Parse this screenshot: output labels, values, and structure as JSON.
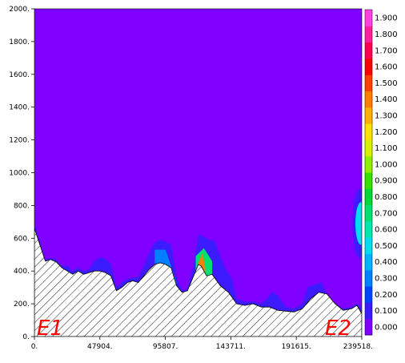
{
  "chart_data": {
    "type": "heatmap",
    "title": "",
    "xlabel": "",
    "ylabel": "",
    "xlim": [
      0,
      239518
    ],
    "ylim": [
      0,
      2000
    ],
    "x_ticks": [
      0,
      47904,
      95807,
      143711,
      191615,
      239518
    ],
    "x_tick_labels": [
      "0.",
      "47904.",
      "95807.",
      "143711.",
      "191615.",
      "239518."
    ],
    "y_ticks": [
      0,
      200,
      400,
      600,
      800,
      1000,
      1200,
      1400,
      1600,
      1800,
      2000
    ],
    "y_tick_labels": [
      "0.",
      "200.",
      "400.",
      "600.",
      "800.",
      "1000.",
      "1200.",
      "1400.",
      "1600.",
      "1800.",
      "2000."
    ],
    "colorbar": {
      "levels": [
        0.0,
        0.1,
        0.2,
        0.3,
        0.4,
        0.5,
        0.6,
        0.7,
        0.8,
        0.9,
        1.0,
        1.1,
        1.2,
        1.3,
        1.4,
        1.5,
        1.6,
        1.7,
        1.8,
        1.9
      ],
      "labels": [
        "0.000",
        "0.100",
        "0.200",
        "0.300",
        "0.400",
        "0.500",
        "0.600",
        "0.700",
        "0.800",
        "0.900",
        "1.000",
        "1.100",
        "1.200",
        "1.300",
        "1.400",
        "1.500",
        "1.600",
        "1.700",
        "1.800",
        "1.900"
      ],
      "colors": [
        "#7f00ff",
        "#3c1cff",
        "#0044ff",
        "#0080ff",
        "#00b4ff",
        "#00dcf0",
        "#00e8b0",
        "#00e070",
        "#00d838",
        "#38e000",
        "#90ee00",
        "#d8f000",
        "#ffe000",
        "#ffb000",
        "#ff8000",
        "#ff4000",
        "#ff0000",
        "#ff0050",
        "#ff20a0",
        "#ff40e0"
      ]
    },
    "background_value": 0.0,
    "background_color": "#7f00ff",
    "terrain_profile": [
      [
        0,
        660
      ],
      [
        4000,
        560
      ],
      [
        8000,
        460
      ],
      [
        12000,
        470
      ],
      [
        16000,
        455
      ],
      [
        20000,
        420
      ],
      [
        24000,
        400
      ],
      [
        28000,
        380
      ],
      [
        32000,
        400
      ],
      [
        36000,
        380
      ],
      [
        40000,
        390
      ],
      [
        44000,
        400
      ],
      [
        48000,
        400
      ],
      [
        52000,
        390
      ],
      [
        56000,
        370
      ],
      [
        60000,
        280
      ],
      [
        64000,
        300
      ],
      [
        68000,
        330
      ],
      [
        72000,
        340
      ],
      [
        76000,
        330
      ],
      [
        80000,
        370
      ],
      [
        84000,
        410
      ],
      [
        88000,
        440
      ],
      [
        92000,
        450
      ],
      [
        96000,
        440
      ],
      [
        100000,
        420
      ],
      [
        104000,
        310
      ],
      [
        108000,
        270
      ],
      [
        112000,
        280
      ],
      [
        116000,
        360
      ],
      [
        120000,
        440
      ],
      [
        122000,
        430
      ],
      [
        126000,
        370
      ],
      [
        130000,
        380
      ],
      [
        136000,
        310
      ],
      [
        142000,
        270
      ],
      [
        148000,
        200
      ],
      [
        154000,
        190
      ],
      [
        160000,
        200
      ],
      [
        166000,
        180
      ],
      [
        172000,
        180
      ],
      [
        178000,
        160
      ],
      [
        184000,
        155
      ],
      [
        190000,
        150
      ],
      [
        196000,
        170
      ],
      [
        202000,
        230
      ],
      [
        208000,
        270
      ],
      [
        214000,
        260
      ],
      [
        220000,
        200
      ],
      [
        226000,
        160
      ],
      [
        232000,
        170
      ],
      [
        236000,
        190
      ],
      [
        239518,
        140
      ]
    ],
    "contours": [
      {
        "level": 0.1,
        "points": [
          [
            0,
            690
          ],
          [
            4000,
            580
          ],
          [
            8000,
            470
          ],
          [
            12000,
            480
          ],
          [
            16000,
            470
          ],
          [
            20000,
            430
          ],
          [
            24000,
            430
          ],
          [
            28000,
            400
          ],
          [
            32000,
            420
          ],
          [
            36000,
            400
          ],
          [
            40000,
            410
          ],
          [
            44000,
            460
          ],
          [
            48000,
            485
          ],
          [
            52000,
            475
          ],
          [
            56000,
            440
          ],
          [
            60000,
            300
          ],
          [
            64000,
            330
          ],
          [
            68000,
            350
          ],
          [
            72000,
            360
          ],
          [
            76000,
            360
          ],
          [
            80000,
            430
          ],
          [
            84000,
            510
          ],
          [
            88000,
            570
          ],
          [
            92000,
            590
          ],
          [
            96000,
            580
          ],
          [
            100000,
            560
          ],
          [
            104000,
            360
          ],
          [
            108000,
            280
          ],
          [
            112000,
            290
          ],
          [
            116000,
            420
          ],
          [
            120000,
            620
          ],
          [
            124000,
            610
          ],
          [
            128000,
            590
          ],
          [
            132000,
            580
          ],
          [
            136000,
            490
          ],
          [
            140000,
            410
          ],
          [
            144000,
            360
          ],
          [
            148000,
            230
          ],
          [
            152000,
            220
          ],
          [
            156000,
            210
          ],
          [
            160000,
            215
          ],
          [
            166000,
            200
          ],
          [
            170000,
            230
          ],
          [
            174000,
            270
          ],
          [
            178000,
            250
          ],
          [
            184000,
            180
          ],
          [
            190000,
            170
          ],
          [
            196000,
            200
          ],
          [
            200000,
            300
          ],
          [
            206000,
            320
          ],
          [
            210000,
            330
          ],
          [
            214000,
            260
          ],
          [
            220000,
            200
          ],
          [
            226000,
            170
          ],
          [
            232000,
            180
          ],
          [
            236000,
            200
          ],
          [
            239518,
            170
          ]
        ]
      },
      {
        "level": 0.3,
        "points": [
          [
            88000,
            530
          ],
          [
            96000,
            530
          ],
          [
            104000,
            330
          ]
        ]
      },
      {
        "level": 0.7,
        "points": [
          [
            118000,
            490
          ],
          [
            124000,
            540
          ],
          [
            130000,
            460
          ]
        ]
      },
      {
        "level": 1.4,
        "points": [
          [
            120000,
            450
          ],
          [
            123000,
            510
          ],
          [
            125000,
            420
          ]
        ]
      }
    ],
    "cells": [
      {
        "region": "upper-right-anomaly",
        "x": [
          234000,
          239518
        ],
        "y": [
          480,
          900
        ],
        "level": 0.1
      },
      {
        "region": "upper-right-anomaly-core",
        "x": [
          236000,
          239518
        ],
        "y": [
          560,
          820
        ],
        "level": 0.5
      }
    ],
    "annotations": [
      "E1",
      "E2"
    ]
  }
}
